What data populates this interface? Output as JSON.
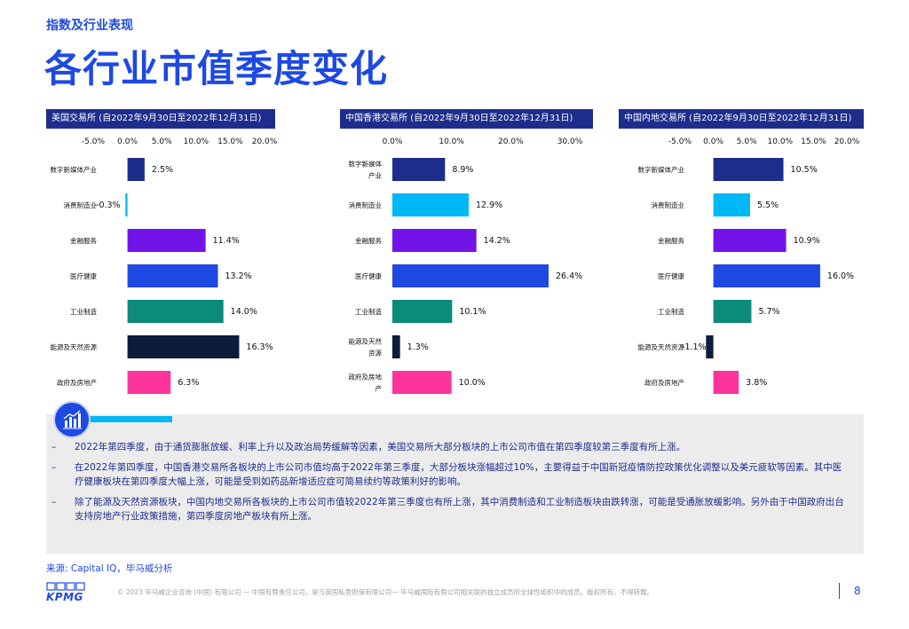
{
  "header": {
    "section": "指数及行业表现",
    "title": "各行业市值季度变化"
  },
  "chart_data": [
    {
      "type": "bar",
      "orientation": "horizontal",
      "title": "美国交易所 (自2022年9月30日至2022年12月31日)",
      "categories": [
        "数字新媒体产业",
        "消费制造业",
        "金融服务",
        "医疗健康",
        "工业制造",
        "能源及天然资源",
        "政府及房地产"
      ],
      "category_lines": [
        [
          "数字新媒体产业"
        ],
        [
          "消费制造业"
        ],
        [
          "金融服务"
        ],
        [
          "医疗健康"
        ],
        [
          "工业制造"
        ],
        [
          "能源及天然资源"
        ],
        [
          "政府及房地产"
        ]
      ],
      "values": [
        2.5,
        -0.3,
        11.4,
        13.2,
        14.0,
        16.3,
        6.3
      ],
      "value_labels": [
        "2.5%",
        "-0.3%",
        "11.4%",
        "13.2%",
        "14.0%",
        "16.3%",
        "6.3%"
      ],
      "colors": [
        "#1e2d8c",
        "#00b8f5",
        "#7213ea",
        "#1e49e2",
        "#0c8a7a",
        "#0c1d3c",
        "#fd349c"
      ],
      "xlim": [
        -5,
        20
      ],
      "ticks": [
        -5,
        0,
        5,
        10,
        15,
        20
      ],
      "tick_labels": [
        "-5.0%",
        "0.0%",
        "5.0%",
        "10.0%",
        "15.0%",
        "20.0%"
      ]
    },
    {
      "type": "bar",
      "orientation": "horizontal",
      "title": "中国香港交易所 (自2022年9月30日至2022年12月31日)",
      "categories": [
        "数字新媒体产业",
        "消费制造业",
        "金融服务",
        "医疗健康",
        "工业制造",
        "能源及天然资源",
        "政府及房地产"
      ],
      "category_lines": [
        [
          "数字新媒体",
          "产业"
        ],
        [
          "消费制造业"
        ],
        [
          "金融服务"
        ],
        [
          "医疗健康"
        ],
        [
          "工业制造"
        ],
        [
          "能源及天然",
          "资源"
        ],
        [
          "政府及房地",
          "产"
        ]
      ],
      "values": [
        8.9,
        12.9,
        14.2,
        26.4,
        10.1,
        1.3,
        10.0
      ],
      "value_labels": [
        "8.9%",
        "12.9%",
        "14.2%",
        "26.4%",
        "10.1%",
        "1.3%",
        "10.0%"
      ],
      "colors": [
        "#1e2d8c",
        "#00b8f5",
        "#7213ea",
        "#1e49e2",
        "#0c8a7a",
        "#0c1d3c",
        "#fd349c"
      ],
      "xlim": [
        0,
        30
      ],
      "ticks": [
        0,
        10,
        20,
        30
      ],
      "tick_labels": [
        "0.0%",
        "10.0%",
        "20.0%",
        "30.0%"
      ]
    },
    {
      "type": "bar",
      "orientation": "horizontal",
      "title": "中国内地交易所 (自2022年9月30日至2022年12月31日)",
      "categories": [
        "数字新媒体产业",
        "消费制造业",
        "金融服务",
        "医疗健康",
        "工业制造",
        "能源及天然资源",
        "政府及房地产"
      ],
      "category_lines": [
        [
          "数字新媒体产业"
        ],
        [
          "消费制造业"
        ],
        [
          "金融服务"
        ],
        [
          "医疗健康"
        ],
        [
          "工业制造"
        ],
        [
          "能源及天然资源"
        ],
        [
          "政府及房地产"
        ]
      ],
      "values": [
        10.5,
        5.5,
        10.9,
        16.0,
        5.7,
        -1.1,
        3.8
      ],
      "value_labels": [
        "10.5%",
        "5.5%",
        "10.9%",
        "16.0%",
        "5.7%",
        "-1.1%",
        "3.8%"
      ],
      "colors": [
        "#1e2d8c",
        "#00b8f5",
        "#7213ea",
        "#1e49e2",
        "#0c8a7a",
        "#0c1d3c",
        "#fd349c"
      ],
      "xlim": [
        -5,
        20
      ],
      "ticks": [
        -5,
        0,
        5,
        10,
        15,
        20
      ],
      "tick_labels": [
        "-5.0%",
        "0.0%",
        "5.0%",
        "10.0%",
        "15.0%",
        "20.0%"
      ]
    }
  ],
  "summary": {
    "icon": "chart-growth-icon",
    "bullet_marker": "–",
    "bullets": [
      "2022年第四季度，由于通货膨胀放缓、利率上升以及政治局势缓解等因素，美国交易所大部分板块的上市公司市值在第四季度较第三季度有所上涨。",
      "在2022年第四季度，中国香港交易所各板块的上市公司市值均高于2022年第三季度，大部分板块涨幅超过10%，主要得益于中国新冠疫情防控政策优化调整以及美元疲软等因素。其中医疗健康板块在第四季度大幅上涨，可能是受到如药品新增适应症可简易续约等政策利好的影响。",
      "除了能源及天然资源板块，中国内地交易所各板块的上市公司市值较2022年第三季度也有所上涨，其中消费制造和工业制造板块由跌转涨，可能是受通胀放缓影响。另外由于中国政府出台支持房地产行业政策措施，第四季度房地产板块有所上涨。"
    ]
  },
  "footer": {
    "source": "来源: Capital IQ，毕马威分析",
    "copyright": "© 2023 毕马威企业咨询 (中国) 有限公司 — 中国有限责任公司，是与英国私营担保有限公司— 毕马威国际有限公司相关联的独立成员所全球性组织中的成员。版权所有，不得转载。",
    "logo": "KPMG",
    "page_number": "8"
  },
  "colors": {
    "brand_blue": "#1e49e2",
    "header_navy": "#1e2d8c",
    "accent_cyan": "#00b8f5"
  }
}
